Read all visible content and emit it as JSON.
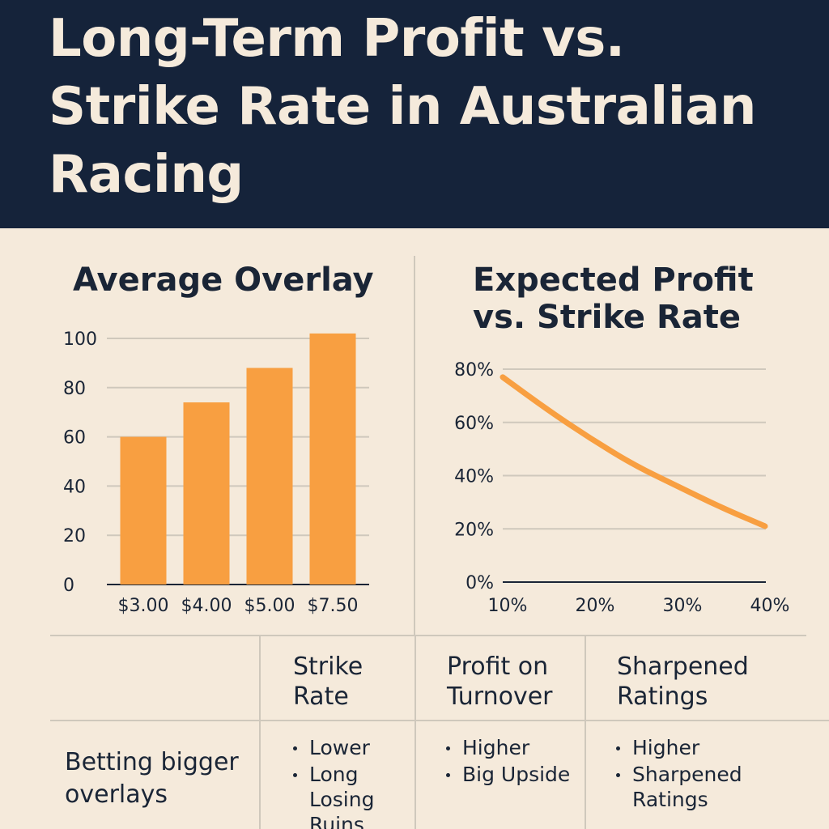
{
  "header": {
    "title": "Long-Term Profit vs. Strike Rate in Australian Racing"
  },
  "colors": {
    "accent": "#f89f41",
    "background": "#f5eadb",
    "header": "#15233a"
  },
  "chart_data": [
    {
      "type": "bar",
      "title": "Average Overlay",
      "categories": [
        "$3.00",
        "$4.00",
        "$5.00",
        "$7.50"
      ],
      "values": [
        60,
        74,
        88,
        102
      ],
      "ylim": [
        0,
        100
      ],
      "yticks": [
        "0",
        "20",
        "40",
        "60",
        "80",
        "100"
      ],
      "xlabel": "",
      "ylabel": "",
      "grid": true
    },
    {
      "type": "line",
      "title": "Expected Profit vs. Strike Rate",
      "xticks": [
        "10%",
        "20%",
        "30%",
        "40%"
      ],
      "yticks": [
        "0%",
        "20%",
        "40%",
        "60%",
        "80%"
      ],
      "xlim": [
        10,
        40
      ],
      "ylim": [
        0,
        80
      ],
      "series": [
        {
          "x": [
            10,
            15,
            20,
            25,
            30,
            35,
            40
          ],
          "y": [
            77,
            65,
            54,
            44,
            36,
            28,
            21
          ]
        }
      ],
      "xlabel": "",
      "ylabel": "",
      "grid": true
    }
  ],
  "table": {
    "headers": [
      "Strike Rate",
      "Profit on Turnover",
      "Sharpened Ratings"
    ],
    "row": {
      "label": "Betting bigger overlays",
      "strike_rate": [
        "Lower",
        "Long Losing Ruins"
      ],
      "profit": [
        "Higher",
        "Big Upside"
      ],
      "ratings": [
        "Higher",
        "Sharpened Ratings"
      ]
    }
  }
}
